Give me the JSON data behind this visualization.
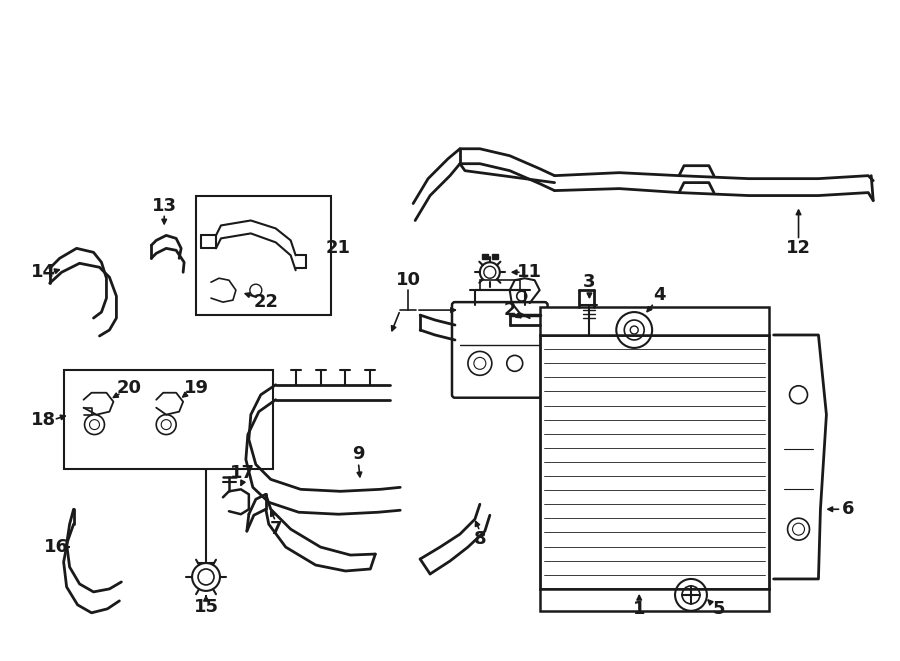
{
  "bg_color": "#ffffff",
  "line_color": "#1a1a1a",
  "figsize": [
    9.0,
    6.61
  ],
  "dpi": 100,
  "label_fs": 13,
  "lw": 1.8
}
